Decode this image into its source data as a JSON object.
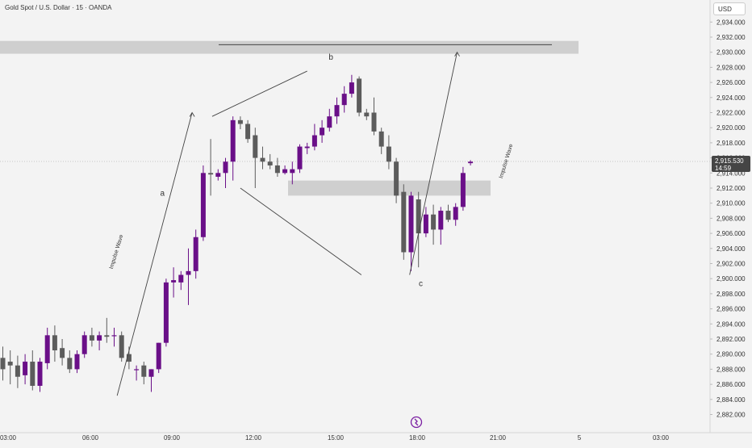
{
  "header": {
    "title": "Gold Spot / U.S. Dollar · 15 · OANDA",
    "currency": "USD"
  },
  "price_label": {
    "price": "2,915.530",
    "countdown": "14:59"
  },
  "colors": {
    "up": "#6a0f88",
    "down": "#5c5c5c",
    "zone": "#cfcfcf",
    "background": "#f3f3f3",
    "line": "#444444"
  },
  "icons": {
    "logo": "tradingview-logo-icon"
  },
  "chart_data": {
    "type": "candlestick",
    "yaxis_ticks": [
      "2,882.000",
      "2,884.000",
      "2,886.000",
      "2,888.000",
      "2,890.000",
      "2,892.000",
      "2,894.000",
      "2,896.000",
      "2,898.000",
      "2,900.000",
      "2,902.000",
      "2,904.000",
      "2,906.000",
      "2,908.000",
      "2,910.000",
      "2,912.000",
      "2,914.000",
      "2,916.000",
      "2,918.000",
      "2,920.000",
      "2,922.000",
      "2,924.000",
      "2,926.000",
      "2,928.000",
      "2,930.000",
      "2,932.000",
      "2,934.000"
    ],
    "xaxis_ticks": [
      "03:00",
      "06:00",
      "09:00",
      "12:00",
      "15:00",
      "18:00",
      "21:00",
      "5",
      "03:00"
    ],
    "ylim": [
      2881,
      2935
    ],
    "candles": [
      {
        "o": 2889.5,
        "h": 2891.0,
        "l": 2886.5,
        "c": 2888.0
      },
      {
        "o": 2889.0,
        "h": 2890.5,
        "l": 2886.0,
        "c": 2888.5
      },
      {
        "o": 2888.5,
        "h": 2889.8,
        "l": 2885.5,
        "c": 2887.0
      },
      {
        "o": 2887.2,
        "h": 2890.0,
        "l": 2886.0,
        "c": 2889.0
      },
      {
        "o": 2889.0,
        "h": 2890.5,
        "l": 2885.2,
        "c": 2885.8
      },
      {
        "o": 2885.8,
        "h": 2889.5,
        "l": 2885.0,
        "c": 2889.0
      },
      {
        "o": 2888.8,
        "h": 2893.5,
        "l": 2888.0,
        "c": 2892.5
      },
      {
        "o": 2892.5,
        "h": 2893.8,
        "l": 2889.0,
        "c": 2890.5
      },
      {
        "o": 2890.8,
        "h": 2892.0,
        "l": 2888.5,
        "c": 2889.5
      },
      {
        "o": 2889.5,
        "h": 2890.5,
        "l": 2887.5,
        "c": 2888.0
      },
      {
        "o": 2888.0,
        "h": 2890.5,
        "l": 2887.5,
        "c": 2890.0
      },
      {
        "o": 2890.0,
        "h": 2893.0,
        "l": 2889.5,
        "c": 2892.5
      },
      {
        "o": 2892.5,
        "h": 2893.5,
        "l": 2891.0,
        "c": 2891.8
      },
      {
        "o": 2891.8,
        "h": 2893.0,
        "l": 2890.5,
        "c": 2892.5
      },
      {
        "o": 2892.5,
        "h": 2894.8,
        "l": 2891.5,
        "c": 2892.3
      },
      {
        "o": 2892.5,
        "h": 2893.5,
        "l": 2891.0,
        "c": 2892.5
      },
      {
        "o": 2892.5,
        "h": 2893.0,
        "l": 2889.0,
        "c": 2889.5
      },
      {
        "o": 2890.0,
        "h": 2891.0,
        "l": 2888.0,
        "c": 2889.0
      },
      {
        "o": 2888.0,
        "h": 2888.5,
        "l": 2886.5,
        "c": 2888.0
      },
      {
        "o": 2888.5,
        "h": 2889.0,
        "l": 2886.0,
        "c": 2887.0
      },
      {
        "o": 2887.0,
        "h": 2888.0,
        "l": 2885.0,
        "c": 2888.0
      },
      {
        "o": 2888.0,
        "h": 2891.5,
        "l": 2887.5,
        "c": 2891.5
      },
      {
        "o": 2891.5,
        "h": 2900.0,
        "l": 2891.0,
        "c": 2899.5
      },
      {
        "o": 2899.5,
        "h": 2901.5,
        "l": 2897.5,
        "c": 2899.8
      },
      {
        "o": 2899.5,
        "h": 2901.0,
        "l": 2898.5,
        "c": 2900.5
      },
      {
        "o": 2900.5,
        "h": 2904.0,
        "l": 2896.5,
        "c": 2901.0
      },
      {
        "o": 2901.0,
        "h": 2906.5,
        "l": 2900.0,
        "c": 2905.5
      },
      {
        "o": 2905.5,
        "h": 2915.0,
        "l": 2905.0,
        "c": 2914.0
      },
      {
        "o": 2914.0,
        "h": 2918.5,
        "l": 2911.0,
        "c": 2913.8
      },
      {
        "o": 2913.5,
        "h": 2914.5,
        "l": 2913.0,
        "c": 2914.0
      },
      {
        "o": 2914.0,
        "h": 2916.0,
        "l": 2912.0,
        "c": 2915.5
      },
      {
        "o": 2915.5,
        "h": 2921.5,
        "l": 2913.0,
        "c": 2921.0
      },
      {
        "o": 2921.0,
        "h": 2921.5,
        "l": 2919.8,
        "c": 2920.5
      },
      {
        "o": 2920.5,
        "h": 2921.0,
        "l": 2918.0,
        "c": 2918.5
      },
      {
        "o": 2919.0,
        "h": 2920.0,
        "l": 2912.0,
        "c": 2916.0
      },
      {
        "o": 2916.0,
        "h": 2917.5,
        "l": 2914.5,
        "c": 2915.5
      },
      {
        "o": 2915.5,
        "h": 2916.5,
        "l": 2914.5,
        "c": 2915.0
      },
      {
        "o": 2915.0,
        "h": 2916.0,
        "l": 2913.5,
        "c": 2914.0
      },
      {
        "o": 2914.0,
        "h": 2915.0,
        "l": 2913.8,
        "c": 2914.5
      },
      {
        "o": 2914.0,
        "h": 2915.5,
        "l": 2912.5,
        "c": 2914.5
      },
      {
        "o": 2914.5,
        "h": 2917.8,
        "l": 2914.0,
        "c": 2917.5
      },
      {
        "o": 2917.3,
        "h": 2918.0,
        "l": 2916.5,
        "c": 2917.5
      },
      {
        "o": 2917.5,
        "h": 2920.5,
        "l": 2917.0,
        "c": 2919.0
      },
      {
        "o": 2919.0,
        "h": 2921.0,
        "l": 2918.0,
        "c": 2920.0
      },
      {
        "o": 2920.0,
        "h": 2922.5,
        "l": 2919.5,
        "c": 2921.5
      },
      {
        "o": 2921.5,
        "h": 2924.0,
        "l": 2920.5,
        "c": 2923.0
      },
      {
        "o": 2923.0,
        "h": 2925.5,
        "l": 2922.0,
        "c": 2924.5
      },
      {
        "o": 2924.5,
        "h": 2927.0,
        "l": 2924.0,
        "c": 2926.0
      },
      {
        "o": 2926.5,
        "h": 2926.8,
        "l": 2921.5,
        "c": 2922.0
      },
      {
        "o": 2922.0,
        "h": 2922.5,
        "l": 2921.0,
        "c": 2921.5
      },
      {
        "o": 2922.0,
        "h": 2924.0,
        "l": 2919.0,
        "c": 2919.5
      },
      {
        "o": 2919.5,
        "h": 2920.0,
        "l": 2916.5,
        "c": 2917.5
      },
      {
        "o": 2917.5,
        "h": 2919.0,
        "l": 2914.5,
        "c": 2915.5
      },
      {
        "o": 2915.5,
        "h": 2916.0,
        "l": 2910.0,
        "c": 2911.0
      },
      {
        "o": 2911.5,
        "h": 2912.5,
        "l": 2902.5,
        "c": 2903.5
      },
      {
        "o": 2903.5,
        "h": 2911.5,
        "l": 2901.0,
        "c": 2911.0
      },
      {
        "o": 2910.5,
        "h": 2911.5,
        "l": 2901.5,
        "c": 2906.0
      },
      {
        "o": 2906.0,
        "h": 2909.5,
        "l": 2905.5,
        "c": 2908.5
      },
      {
        "o": 2908.5,
        "h": 2909.8,
        "l": 2904.5,
        "c": 2906.5
      },
      {
        "o": 2906.5,
        "h": 2909.5,
        "l": 2904.5,
        "c": 2909.0
      },
      {
        "o": 2909.0,
        "h": 2909.8,
        "l": 2907.5,
        "c": 2907.8
      },
      {
        "o": 2907.8,
        "h": 2910.0,
        "l": 2907.0,
        "c": 2909.5
      },
      {
        "o": 2909.5,
        "h": 2914.8,
        "l": 2909.0,
        "c": 2914.0
      },
      {
        "o": 2915.3,
        "h": 2915.7,
        "l": 2915.0,
        "c": 2915.5
      }
    ],
    "annotations": [
      {
        "text": "a",
        "x": 21.5,
        "y": 2911.0
      },
      {
        "text": "b",
        "x": 44.2,
        "y": 2929.0
      },
      {
        "text": "c",
        "x": 56.3,
        "y": 2899.0
      },
      {
        "text": "Impulse Wave",
        "x": 15.5,
        "y": 2903.5,
        "angle": -73
      },
      {
        "text": "Impulse Wave",
        "x": 68.0,
        "y": 2915.5,
        "angle": -73
      }
    ]
  }
}
